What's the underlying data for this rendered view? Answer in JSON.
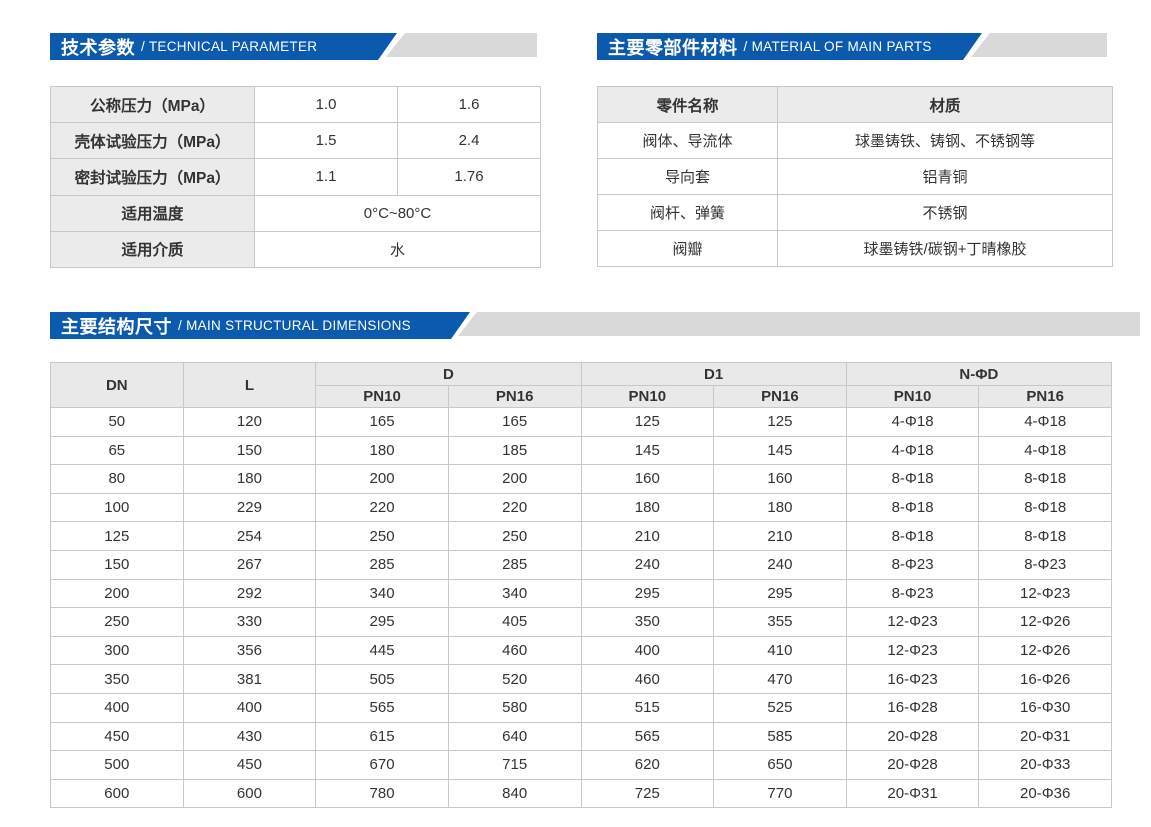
{
  "page": {
    "accent_blue": "#0b5aae",
    "banner_gray": "#d9d9d9",
    "table_header_bg": "#ebebeb",
    "border_color": "#c8c8c8",
    "text_color": "#333333"
  },
  "sections": {
    "technical": {
      "title_zh": "技术参数",
      "title_en": "/ TECHNICAL PARAMETER",
      "table": {
        "rows": [
          {
            "label": "公称压力（MPa）",
            "values": [
              "1.0",
              "1.6"
            ]
          },
          {
            "label": "壳体试验压力（MPa）",
            "values": [
              "1.5",
              "2.4"
            ]
          },
          {
            "label": "密封试验压力（MPa）",
            "values": [
              "1.1",
              "1.76"
            ]
          },
          {
            "label": "适用温度",
            "span": "0°C~80°C"
          },
          {
            "label": "适用介质",
            "span": "水"
          }
        ]
      }
    },
    "materials": {
      "title_zh": "主要零部件材料",
      "title_en": "/ MATERIAL OF MAIN PARTS",
      "table": {
        "headers": [
          "零件名称",
          "材质"
        ],
        "rows": [
          [
            "阀体、导流体",
            "球墨铸铁、铸钢、不锈钢等"
          ],
          [
            "导向套",
            "铝青铜"
          ],
          [
            "阀杆、弹簧",
            "不锈钢"
          ],
          [
            "阀瓣",
            "球墨铸铁/碳钢+丁晴橡胶"
          ]
        ]
      }
    },
    "dimensions": {
      "title_zh": "主要结构尺寸",
      "title_en": "/ MAIN STRUCTURAL DIMENSIONS",
      "table": {
        "col_headers": {
          "dn": "DN",
          "l": "L",
          "d": "D",
          "d1": "D1",
          "nphid": "N-ΦD",
          "pn10": "PN10",
          "pn16": "PN16"
        },
        "rows": [
          [
            "50",
            "120",
            "165",
            "165",
            "125",
            "125",
            "4-Φ18",
            "4-Φ18"
          ],
          [
            "65",
            "150",
            "180",
            "185",
            "145",
            "145",
            "4-Φ18",
            "4-Φ18"
          ],
          [
            "80",
            "180",
            "200",
            "200",
            "160",
            "160",
            "8-Φ18",
            "8-Φ18"
          ],
          [
            "100",
            "229",
            "220",
            "220",
            "180",
            "180",
            "8-Φ18",
            "8-Φ18"
          ],
          [
            "125",
            "254",
            "250",
            "250",
            "210",
            "210",
            "8-Φ18",
            "8-Φ18"
          ],
          [
            "150",
            "267",
            "285",
            "285",
            "240",
            "240",
            "8-Φ23",
            "8-Φ23"
          ],
          [
            "200",
            "292",
            "340",
            "340",
            "295",
            "295",
            "8-Φ23",
            "12-Φ23"
          ],
          [
            "250",
            "330",
            "295",
            "405",
            "350",
            "355",
            "12-Φ23",
            "12-Φ26"
          ],
          [
            "300",
            "356",
            "445",
            "460",
            "400",
            "410",
            "12-Φ23",
            "12-Φ26"
          ],
          [
            "350",
            "381",
            "505",
            "520",
            "460",
            "470",
            "16-Φ23",
            "16-Φ26"
          ],
          [
            "400",
            "400",
            "565",
            "580",
            "515",
            "525",
            "16-Φ28",
            "16-Φ30"
          ],
          [
            "450",
            "430",
            "615",
            "640",
            "565",
            "585",
            "20-Φ28",
            "20-Φ31"
          ],
          [
            "500",
            "450",
            "670",
            "715",
            "620",
            "650",
            "20-Φ28",
            "20-Φ33"
          ],
          [
            "600",
            "600",
            "780",
            "840",
            "725",
            "770",
            "20-Φ31",
            "20-Φ36"
          ]
        ]
      }
    }
  }
}
